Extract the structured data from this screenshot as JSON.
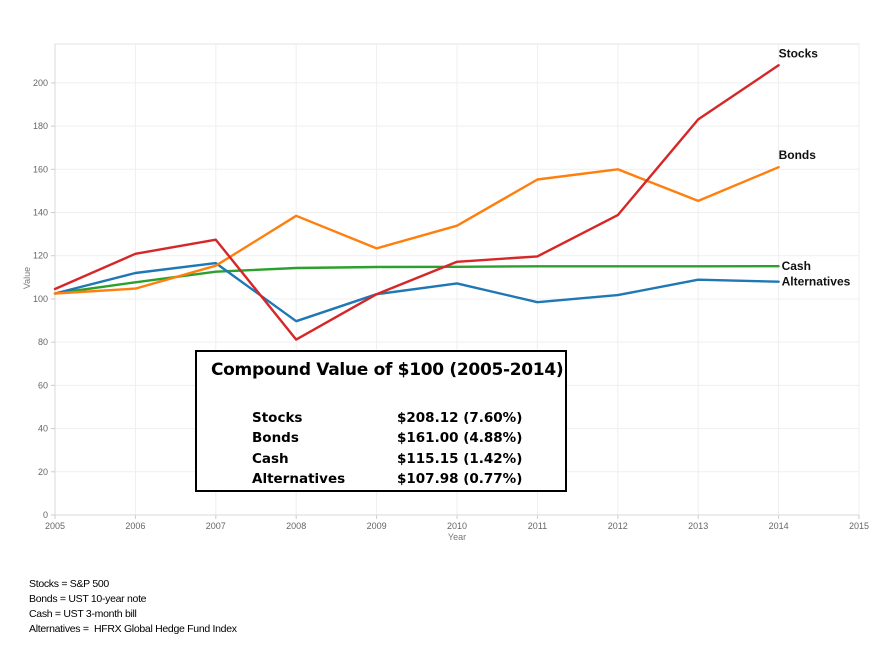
{
  "chart_data": {
    "type": "line",
    "title": "",
    "xlabel": "Year",
    "ylabel": "Value",
    "x": [
      2005,
      2006,
      2007,
      2008,
      2009,
      2010,
      2011,
      2012,
      2013,
      2014
    ],
    "xlim": [
      2005,
      2015
    ],
    "ylim": [
      0,
      218
    ],
    "x_ticks": [
      "2005",
      "2006",
      "2007",
      "2008",
      "2009",
      "2010",
      "2011",
      "2012",
      "2013",
      "2014",
      "2015"
    ],
    "y_ticks": [
      "0",
      "20",
      "40",
      "60",
      "80",
      "100",
      "120",
      "140",
      "160",
      "180",
      "200"
    ],
    "grid": true,
    "legend": "end-of-line labels (right)",
    "series": [
      {
        "name": "Stocks",
        "color": "#d62728",
        "values": [
          104.6,
          120.9,
          127.4,
          81.2,
          102.2,
          117.2,
          119.7,
          138.8,
          183.1,
          208.12
        ]
      },
      {
        "name": "Bonds",
        "color": "#ff7f0e",
        "values": [
          102.5,
          104.8,
          115.4,
          138.5,
          123.4,
          133.9,
          155.3,
          160.0,
          145.4,
          161.0
        ]
      },
      {
        "name": "Cash",
        "color": "#2ca02c",
        "values": [
          102.5,
          107.7,
          112.6,
          114.3,
          114.8,
          114.9,
          115.1,
          115.1,
          115.1,
          115.15
        ]
      },
      {
        "name": "Alternatives",
        "color": "#1f77b4",
        "values": [
          102.5,
          112.0,
          116.6,
          89.7,
          102.2,
          107.2,
          98.5,
          101.8,
          108.9,
          107.98
        ]
      }
    ]
  },
  "summary": {
    "title": "Compound Value of $100 (2005-2014)",
    "rows": [
      {
        "name": "Stocks",
        "value": "$208.12  (7.60%)"
      },
      {
        "name": "Bonds",
        "value": "$161.00  (4.88%)"
      },
      {
        "name": "Cash",
        "value": "$115.15  (1.42%)"
      },
      {
        "name": "Alternatives",
        "value": "$107.98  (0.77%)"
      }
    ]
  },
  "notes": [
    "Stocks = S&P 500",
    "Bonds = UST 10-year note",
    "Cash = UST 3-month bill",
    "Alternatives =  HFRX Global Hedge Fund Index"
  ]
}
